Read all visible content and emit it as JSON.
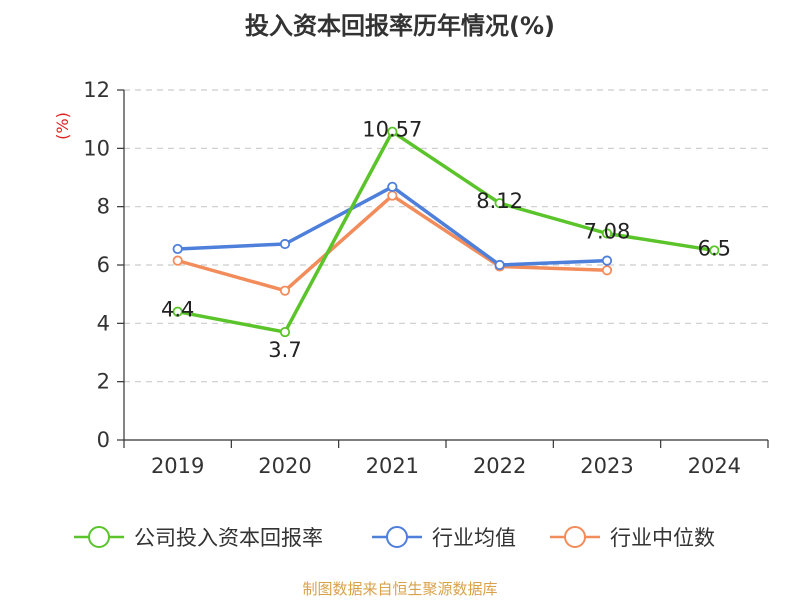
{
  "chart_data": {
    "type": "line",
    "title": "投入资本回报率历年情况(%)",
    "ylabel": "(%)",
    "categories": [
      "2019",
      "2020",
      "2021",
      "2022",
      "2023",
      "2024"
    ],
    "ylim": [
      0,
      12
    ],
    "yticks": [
      0,
      2,
      4,
      6,
      8,
      10,
      12
    ],
    "grid": true,
    "legend_position": "bottom",
    "series": [
      {
        "name": "公司投入资本回报率",
        "color": "#5ac42a",
        "values": [
          4.4,
          3.7,
          10.57,
          8.12,
          7.08,
          6.5
        ],
        "data_labels": [
          "4.4",
          "3.7",
          "10.57",
          "8.12",
          "7.08",
          "6.5"
        ]
      },
      {
        "name": "行业均值",
        "color": "#4d7fdb",
        "values": [
          6.55,
          6.72,
          8.68,
          6.0,
          6.15,
          null
        ]
      },
      {
        "name": "行业中位数",
        "color": "#f28c5a",
        "values": [
          6.15,
          5.12,
          8.38,
          5.95,
          5.82,
          null
        ]
      }
    ]
  },
  "footer": {
    "source": "制图数据来自恒生聚源数据库"
  }
}
